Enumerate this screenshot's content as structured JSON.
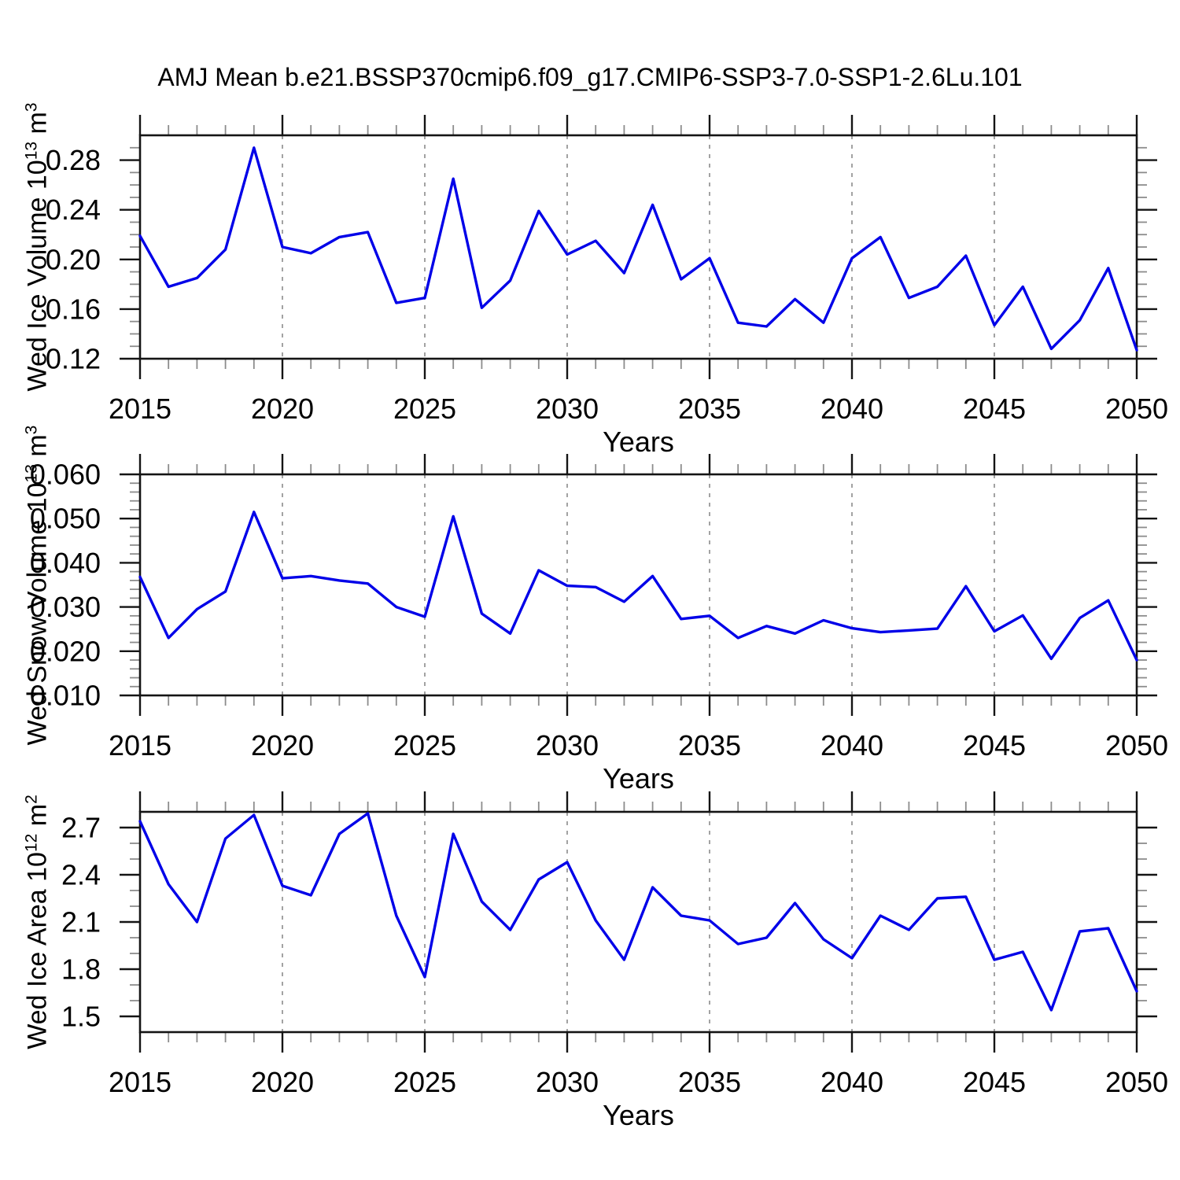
{
  "title": "AMJ Mean b.e21.BSSP370cmip6.f09_g17.CMIP6-SSP3-7.0-SSP1-2.6Lu.101",
  "colors": {
    "line": "#0000e8",
    "axis": "#141414",
    "grid": "#8c8c8c",
    "minor_tick": "#8c8c8c",
    "background": "#ffffff"
  },
  "x_axis": {
    "title": "Years",
    "range": [
      2015,
      2050
    ],
    "ticks": [
      2015,
      2020,
      2025,
      2030,
      2035,
      2040,
      2045,
      2050
    ],
    "labels": [
      "2015",
      "2020",
      "2025",
      "2030",
      "2035",
      "2040",
      "2045",
      "2050"
    ],
    "minor_step": 1,
    "grid_years": [
      2020,
      2025,
      2030,
      2035,
      2040,
      2045
    ],
    "grid_style": "dashed"
  },
  "years": [
    2015,
    2016,
    2017,
    2018,
    2019,
    2020,
    2021,
    2022,
    2023,
    2024,
    2025,
    2026,
    2027,
    2028,
    2029,
    2030,
    2031,
    2032,
    2033,
    2034,
    2035,
    2036,
    2037,
    2038,
    2039,
    2040,
    2041,
    2042,
    2043,
    2044,
    2045,
    2046,
    2047,
    2048,
    2049,
    2050
  ],
  "chart_data": [
    {
      "type": "line",
      "name": "wed-ice-volume",
      "ylabel_prefix": "Wed Ice Volume 10",
      "ylabel_exp": "13",
      "ylabel_unit": " m",
      "ylabel_unit_exp": "3",
      "ylim": [
        0.12,
        0.3
      ],
      "yticks": [
        0.12,
        0.16,
        0.2,
        0.24,
        0.28
      ],
      "ytick_labels": [
        "0.12",
        "0.16",
        "0.20",
        "0.24",
        "0.28"
      ],
      "yminor_step": 0.01,
      "values": [
        0.219,
        0.178,
        0.185,
        0.208,
        0.29,
        0.21,
        0.205,
        0.218,
        0.222,
        0.165,
        0.169,
        0.265,
        0.161,
        0.183,
        0.239,
        0.204,
        0.215,
        0.189,
        0.244,
        0.184,
        0.201,
        0.149,
        0.146,
        0.168,
        0.149,
        0.201,
        0.218,
        0.169,
        0.178,
        0.203,
        0.147,
        0.178,
        0.128,
        0.151,
        0.193,
        0.127
      ]
    },
    {
      "type": "line",
      "name": "wed-snow-volume",
      "ylabel_prefix": "Wed Snow Volume 10",
      "ylabel_exp": "13",
      "ylabel_unit": " m",
      "ylabel_unit_exp": "3",
      "ylim": [
        0.01,
        0.06
      ],
      "yticks": [
        0.01,
        0.02,
        0.03,
        0.04,
        0.05,
        0.06
      ],
      "ytick_labels": [
        "0.010",
        "0.020",
        "0.030",
        "0.040",
        "0.050",
        "0.060"
      ],
      "yminor_step": 0.002,
      "values": [
        0.0368,
        0.023,
        0.0295,
        0.0335,
        0.0515,
        0.0365,
        0.037,
        0.036,
        0.0353,
        0.03,
        0.0278,
        0.0505,
        0.0285,
        0.024,
        0.0383,
        0.0348,
        0.0345,
        0.0312,
        0.037,
        0.0273,
        0.028,
        0.023,
        0.0257,
        0.024,
        0.027,
        0.0252,
        0.0243,
        0.0247,
        0.0251,
        0.0347,
        0.0245,
        0.0281,
        0.0183,
        0.0275,
        0.0315,
        0.018
      ]
    },
    {
      "type": "line",
      "name": "wed-ice-area",
      "ylabel_prefix": "Wed Ice Area 10",
      "ylabel_exp": "12",
      "ylabel_unit": " m",
      "ylabel_unit_exp": "2",
      "ylim": [
        1.4,
        2.8
      ],
      "yticks": [
        1.5,
        1.8,
        2.1,
        2.4,
        2.7
      ],
      "ytick_labels": [
        "1.5",
        "1.8",
        "2.1",
        "2.4",
        "2.7"
      ],
      "yminor_step": 0.1,
      "values": [
        2.74,
        2.34,
        2.1,
        2.63,
        2.78,
        2.33,
        2.27,
        2.66,
        2.79,
        2.14,
        1.75,
        2.66,
        2.23,
        2.05,
        2.37,
        2.48,
        2.11,
        1.86,
        2.32,
        2.14,
        2.11,
        1.96,
        2.0,
        2.22,
        1.99,
        1.87,
        2.14,
        2.05,
        2.25,
        2.26,
        1.86,
        1.91,
        1.54,
        2.04,
        2.06,
        1.66
      ]
    }
  ]
}
